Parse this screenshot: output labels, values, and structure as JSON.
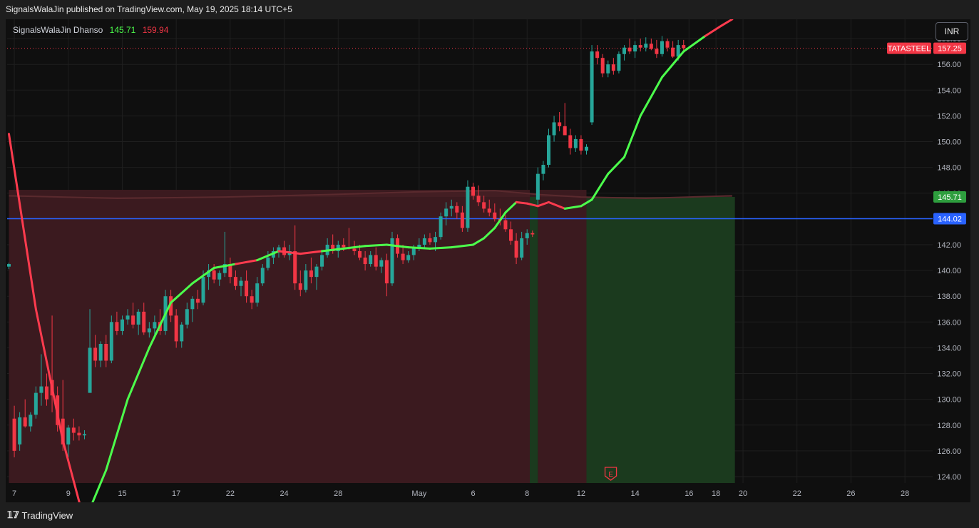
{
  "header": {
    "caption": "SignalsWalaJin published on TradingView.com, May 19, 2025 18:14 UTC+5"
  },
  "indicator": {
    "name": "SignalsWalaJin Dhanso",
    "value_green": "145.71",
    "value_red": "159.94"
  },
  "currency_button": "INR",
  "footer": {
    "logo_mark": "𝟙𝟟",
    "brand": "TradingView"
  },
  "price_badges": {
    "symbol": "TATASTEEL",
    "last": "157.25",
    "band": "145.71",
    "hline": "144.02"
  },
  "colors": {
    "bull": "#26a69a",
    "bear": "#f23645",
    "trend_up": "#4cff4c",
    "trend_down": "#ff3b4e",
    "hline": "#2962ff",
    "zone_red": "#3b1a1f",
    "zone_green": "#1b3a1e"
  },
  "chart_data": {
    "type": "candlestick",
    "ylim": [
      123.5,
      159.5
    ],
    "y_ticks": [
      124,
      126,
      128,
      130,
      132,
      134,
      136,
      138,
      140,
      142,
      144,
      146,
      148,
      150,
      152,
      154,
      156,
      158
    ],
    "x_ticks": [
      {
        "label": "7",
        "idx": 1
      },
      {
        "label": "9",
        "idx": 11
      },
      {
        "label": "15",
        "idx": 21
      },
      {
        "label": "17",
        "idx": 31
      },
      {
        "label": "22",
        "idx": 41
      },
      {
        "label": "24",
        "idx": 51
      },
      {
        "label": "28",
        "idx": 61
      },
      {
        "label": "May",
        "idx": 76
      },
      {
        "label": "6",
        "idx": 86
      },
      {
        "label": "8",
        "idx": 96
      },
      {
        "label": "12",
        "idx": 106
      },
      {
        "label": "14",
        "idx": 116
      },
      {
        "label": "16",
        "idx": 126
      },
      {
        "label": "18",
        "idx": 131
      },
      {
        "label": "20",
        "idx": 136
      },
      {
        "label": "22",
        "idx": 146
      },
      {
        "label": "26",
        "idx": 156
      },
      {
        "label": "28",
        "idx": 166
      }
    ],
    "last_price": 157.25,
    "horizontal_line": 144.02,
    "band_value": 145.71,
    "candles": [
      [
        140.3,
        140.6,
        140.1,
        140.5
      ],
      [
        128.5,
        129.5,
        125.5,
        126.0
      ],
      [
        126.5,
        129.0,
        126.0,
        128.6
      ],
      [
        128.6,
        130.0,
        127.8,
        127.9
      ],
      [
        127.9,
        129.0,
        127.5,
        128.8
      ],
      [
        128.8,
        131.0,
        128.5,
        130.5
      ],
      [
        130.5,
        133.5,
        129.5,
        131.0
      ],
      [
        131.0,
        132.0,
        129.5,
        130.0
      ],
      [
        131.5,
        136.5,
        129.0,
        130.3
      ],
      [
        130.3,
        131.0,
        127.5,
        128.0
      ],
      [
        128.5,
        131.5,
        126.0,
        126.5
      ],
      [
        126.5,
        128.0,
        125.5,
        127.8
      ],
      [
        127.8,
        128.5,
        126.8,
        127.4
      ],
      [
        127.4,
        127.9,
        126.8,
        127.2
      ],
      [
        127.2,
        127.6,
        126.9,
        127.3
      ],
      [
        130.5,
        137.0,
        130.5,
        134.0
      ],
      [
        134.0,
        135.0,
        132.5,
        133.0
      ],
      [
        133.0,
        134.5,
        132.5,
        134.3
      ],
      [
        134.3,
        135.0,
        132.5,
        133.0
      ],
      [
        133.0,
        136.5,
        132.8,
        136.0
      ],
      [
        136.0,
        136.8,
        135.0,
        135.3
      ],
      [
        135.3,
        136.5,
        135.0,
        136.2
      ],
      [
        136.2,
        137.0,
        135.8,
        136.5
      ],
      [
        136.5,
        137.5,
        135.5,
        135.8
      ],
      [
        135.8,
        137.0,
        135.0,
        136.8
      ],
      [
        136.8,
        137.5,
        135.0,
        135.2
      ],
      [
        135.2,
        136.0,
        134.8,
        135.5
      ],
      [
        135.5,
        136.5,
        135.0,
        136.0
      ],
      [
        136.0,
        137.0,
        135.0,
        135.3
      ],
      [
        135.3,
        138.5,
        135.0,
        138.0
      ],
      [
        138.0,
        138.5,
        136.0,
        136.5
      ],
      [
        136.5,
        137.0,
        134.0,
        134.5
      ],
      [
        134.5,
        136.0,
        134.0,
        135.8
      ],
      [
        135.8,
        137.5,
        135.5,
        137.0
      ],
      [
        137.0,
        138.0,
        136.0,
        137.8
      ],
      [
        137.8,
        138.5,
        137.0,
        137.5
      ],
      [
        137.5,
        140.0,
        137.3,
        139.5
      ],
      [
        139.5,
        140.5,
        138.5,
        140.0
      ],
      [
        140.0,
        140.5,
        139.0,
        139.3
      ],
      [
        139.3,
        140.0,
        138.8,
        139.8
      ],
      [
        139.8,
        143.0,
        139.5,
        140.5
      ],
      [
        140.5,
        141.0,
        139.0,
        139.5
      ],
      [
        139.5,
        140.0,
        138.5,
        138.8
      ],
      [
        138.8,
        139.5,
        138.0,
        139.2
      ],
      [
        139.2,
        140.0,
        137.5,
        138.0
      ],
      [
        138.0,
        138.5,
        137.0,
        137.5
      ],
      [
        137.5,
        139.5,
        137.2,
        139.0
      ],
      [
        139.0,
        140.5,
        138.8,
        140.2
      ],
      [
        140.2,
        141.5,
        140.0,
        141.0
      ],
      [
        141.0,
        141.8,
        140.5,
        141.5
      ],
      [
        141.5,
        142.0,
        141.0,
        141.8
      ],
      [
        141.8,
        142.3,
        141.0,
        141.2
      ],
      [
        141.2,
        142.0,
        140.8,
        141.5
      ],
      [
        141.5,
        143.5,
        138.5,
        139.0
      ],
      [
        139.0,
        140.0,
        138.0,
        138.5
      ],
      [
        138.5,
        140.5,
        138.3,
        140.0
      ],
      [
        140.0,
        141.0,
        139.0,
        139.5
      ],
      [
        139.5,
        140.5,
        138.5,
        140.3
      ],
      [
        140.3,
        141.5,
        140.0,
        141.2
      ],
      [
        141.2,
        142.5,
        141.0,
        142.0
      ],
      [
        142.0,
        142.8,
        141.3,
        141.5
      ],
      [
        141.5,
        142.3,
        141.0,
        142.0
      ],
      [
        142.0,
        142.5,
        141.5,
        141.8
      ],
      [
        141.8,
        143.3,
        141.6,
        141.7
      ],
      [
        141.7,
        142.3,
        141.2,
        141.5
      ],
      [
        141.5,
        142.0,
        140.8,
        141.0
      ],
      [
        141.0,
        141.5,
        140.0,
        140.5
      ],
      [
        140.5,
        141.5,
        140.3,
        141.2
      ],
      [
        141.2,
        141.8,
        140.0,
        140.3
      ],
      [
        140.3,
        141.0,
        139.8,
        140.8
      ],
      [
        140.8,
        141.3,
        138.0,
        139.0
      ],
      [
        139.0,
        143.0,
        138.8,
        142.5
      ],
      [
        142.5,
        142.8,
        141.0,
        141.3
      ],
      [
        141.3,
        142.0,
        140.5,
        140.8
      ],
      [
        140.8,
        141.5,
        140.6,
        141.2
      ],
      [
        141.2,
        142.0,
        140.8,
        141.8
      ],
      [
        141.8,
        142.5,
        141.5,
        142.0
      ],
      [
        142.0,
        142.8,
        141.7,
        142.5
      ],
      [
        142.5,
        142.9,
        142.0,
        142.2
      ],
      [
        142.2,
        143.0,
        141.5,
        142.6
      ],
      [
        142.6,
        144.5,
        142.4,
        144.2
      ],
      [
        144.2,
        145.3,
        143.5,
        144.8
      ],
      [
        144.8,
        145.5,
        144.2,
        145.0
      ],
      [
        145.0,
        145.3,
        144.0,
        144.5
      ],
      [
        144.5,
        145.0,
        143.0,
        143.3
      ],
      [
        143.3,
        147.0,
        143.0,
        146.5
      ],
      [
        146.5,
        146.8,
        145.5,
        145.8
      ],
      [
        145.8,
        146.6,
        145.0,
        145.3
      ],
      [
        145.3,
        145.8,
        144.5,
        144.8
      ],
      [
        144.8,
        145.5,
        144.2,
        144.5
      ],
      [
        144.5,
        145.2,
        143.8,
        144.0
      ],
      [
        144.0,
        144.8,
        143.5,
        143.9
      ],
      [
        143.9,
        144.3,
        143.0,
        143.2
      ],
      [
        143.2,
        143.8,
        142.0,
        142.3
      ],
      [
        142.3,
        142.9,
        140.5,
        141.0
      ],
      [
        141.0,
        143.0,
        140.8,
        142.5
      ],
      [
        142.5,
        143.2,
        142.0,
        142.9
      ],
      [
        142.9,
        143.1,
        142.6,
        142.8
      ],
      [
        145.5,
        148.0,
        145.0,
        147.5
      ],
      [
        147.5,
        148.5,
        147.0,
        148.2
      ],
      [
        148.2,
        151.0,
        148.0,
        150.5
      ],
      [
        150.5,
        152.0,
        150.0,
        151.5
      ],
      [
        151.5,
        152.3,
        150.8,
        151.2
      ],
      [
        151.2,
        153.0,
        150.5,
        150.5
      ],
      [
        150.5,
        151.0,
        149.0,
        149.5
      ],
      [
        149.5,
        150.5,
        149.2,
        150.2
      ],
      [
        150.2,
        150.5,
        149.0,
        149.3
      ],
      [
        149.3,
        149.8,
        149.0,
        149.6
      ],
      [
        151.5,
        157.5,
        151.3,
        157.0
      ],
      [
        157.0,
        157.5,
        156.0,
        156.5
      ],
      [
        156.5,
        156.8,
        155.0,
        155.3
      ],
      [
        155.3,
        156.3,
        155.0,
        156.0
      ],
      [
        156.0,
        156.5,
        155.2,
        155.5
      ],
      [
        155.5,
        157.0,
        155.3,
        156.8
      ],
      [
        156.8,
        157.5,
        156.3,
        157.3
      ],
      [
        157.3,
        158.0,
        156.8,
        157.0
      ],
      [
        157.0,
        157.8,
        156.5,
        157.5
      ],
      [
        157.5,
        158.0,
        157.0,
        157.3
      ],
      [
        157.3,
        158.1,
        157.0,
        157.6
      ],
      [
        157.6,
        158.0,
        157.1,
        157.2
      ],
      [
        157.2,
        157.9,
        156.5,
        156.8
      ],
      [
        156.8,
        158.2,
        156.6,
        157.8
      ],
      [
        157.8,
        158.0,
        157.0,
        157.3
      ],
      [
        157.3,
        157.8,
        156.5,
        156.6
      ],
      [
        156.6,
        157.9,
        156.3,
        157.5
      ],
      [
        157.5,
        157.9,
        157.0,
        157.25
      ]
    ],
    "trend_line": [
      [
        0,
        150.6
      ],
      [
        5,
        137.0
      ],
      [
        10,
        126.8
      ],
      [
        14,
        120.5
      ],
      [
        18,
        124.5
      ],
      [
        22,
        130.0
      ],
      [
        26,
        134.0
      ],
      [
        30,
        137.5
      ],
      [
        34,
        139.0
      ],
      [
        38,
        140.2
      ],
      [
        42,
        140.5
      ],
      [
        46,
        140.8
      ],
      [
        50,
        141.5
      ],
      [
        54,
        141.3
      ],
      [
        58,
        141.5
      ],
      [
        62,
        141.7
      ],
      [
        66,
        141.9
      ],
      [
        70,
        142.0
      ],
      [
        74,
        141.8
      ],
      [
        78,
        141.7
      ],
      [
        82,
        141.8
      ],
      [
        86,
        142.0
      ],
      [
        88,
        142.5
      ],
      [
        90,
        143.3
      ],
      [
        92,
        144.5
      ],
      [
        94,
        145.3
      ],
      [
        96,
        145.2
      ],
      [
        98,
        145.0
      ],
      [
        100,
        145.3
      ],
      [
        103,
        144.8
      ],
      [
        106,
        145.0
      ],
      [
        108,
        145.5
      ],
      [
        111,
        147.5
      ],
      [
        114,
        148.8
      ],
      [
        117,
        152.0
      ],
      [
        121,
        155.0
      ],
      [
        125,
        157.0
      ],
      [
        129,
        158.2
      ],
      [
        132,
        159.0
      ],
      [
        134,
        159.5
      ]
    ],
    "trend_up_segments": [
      [
        14,
        42
      ],
      [
        46,
        50
      ],
      [
        58,
        94
      ],
      [
        104,
        128
      ]
    ],
    "band_top": [
      [
        0,
        145.8
      ],
      [
        20,
        145.6
      ],
      [
        40,
        145.7
      ],
      [
        60,
        145.9
      ],
      [
        75,
        146.1
      ],
      [
        90,
        146.2
      ],
      [
        98,
        145.9
      ],
      [
        106,
        145.7
      ],
      [
        118,
        145.6
      ],
      [
        134,
        145.8
      ]
    ],
    "zones": [
      {
        "from": 0,
        "to": 96.5,
        "kind": "red"
      },
      {
        "from": 96.5,
        "to": 98,
        "kind": "green"
      },
      {
        "from": 98,
        "to": 107,
        "kind": "red"
      },
      {
        "from": 107,
        "to": 134.5,
        "kind": "green"
      }
    ],
    "earnings_marker": {
      "idx": 111.5,
      "label": "E"
    }
  }
}
